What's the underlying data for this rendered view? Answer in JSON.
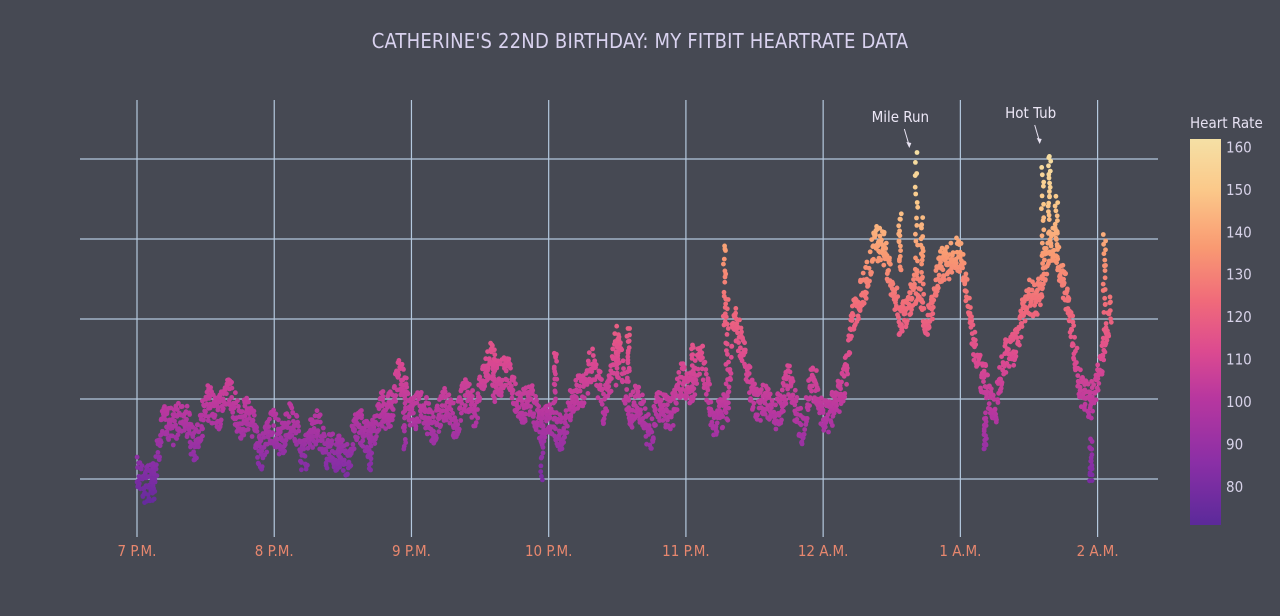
{
  "chart_data": {
    "type": "scatter",
    "title": "CATHERINE'S 22ND BIRTHDAY: MY FITBIT HEARTRATE DATA",
    "xlabel": "",
    "ylabel": "",
    "x_unit": "hours since 7 P.M.",
    "xlim": [
      -0.15,
      7.45
    ],
    "ylim": [
      72,
      166
    ],
    "x_tick_values": [
      0,
      1,
      2,
      3,
      4,
      5,
      6,
      7
    ],
    "x_tick_labels": [
      "7 P.M.",
      "8 P.M.",
      "9 P.M.",
      "10 P.M.",
      "11 P.M.",
      "12 A.M.",
      "1 A.M.",
      "2 A.M."
    ],
    "y_gridlines": [
      80,
      100,
      120,
      140,
      160
    ],
    "colorbar": {
      "title": "Heart Rate",
      "range": [
        71,
        162
      ],
      "ticks": [
        80,
        90,
        100,
        110,
        120,
        130,
        140,
        150,
        160
      ],
      "colors": [
        "#5b2a9a",
        "#8a2fa6",
        "#b8379f",
        "#dc4a90",
        "#f06a7a",
        "#f99a72",
        "#fbc98a",
        "#f5e0a5"
      ]
    },
    "annotations": [
      {
        "text": "Mile Run",
        "x": 5.65,
        "y": 160
      },
      {
        "text": "Hot Tub",
        "x": 6.6,
        "y": 161
      }
    ],
    "series_keypoints": [
      [
        0.0,
        81
      ],
      [
        0.05,
        76
      ],
      [
        0.1,
        81
      ],
      [
        0.2,
        92
      ],
      [
        0.3,
        97
      ],
      [
        0.4,
        90
      ],
      [
        0.5,
        96
      ],
      [
        0.65,
        101
      ],
      [
        0.8,
        95
      ],
      [
        0.9,
        89
      ],
      [
        1.0,
        91
      ],
      [
        1.1,
        94
      ],
      [
        1.2,
        88
      ],
      [
        1.35,
        92
      ],
      [
        1.45,
        84
      ],
      [
        1.6,
        91
      ],
      [
        1.75,
        93
      ],
      [
        1.9,
        104
      ],
      [
        2.0,
        99
      ],
      [
        2.1,
        95
      ],
      [
        2.25,
        96
      ],
      [
        2.45,
        99
      ],
      [
        2.6,
        110
      ],
      [
        2.75,
        101
      ],
      [
        2.95,
        95
      ],
      [
        3.05,
        92
      ],
      [
        3.15,
        96
      ],
      [
        3.3,
        108
      ],
      [
        3.4,
        100
      ],
      [
        3.5,
        112
      ],
      [
        3.6,
        98
      ],
      [
        3.75,
        94
      ],
      [
        3.95,
        101
      ],
      [
        4.1,
        109
      ],
      [
        4.2,
        97
      ],
      [
        4.3,
        94
      ],
      [
        4.35,
        124
      ],
      [
        4.45,
        104
      ],
      [
        4.6,
        97
      ],
      [
        4.75,
        102
      ],
      [
        4.85,
        95
      ],
      [
        4.95,
        104
      ],
      [
        5.05,
        93
      ],
      [
        5.15,
        106
      ],
      [
        5.3,
        131
      ],
      [
        5.45,
        140
      ],
      [
        5.55,
        118
      ],
      [
        5.65,
        128
      ],
      [
        5.75,
        121
      ],
      [
        5.85,
        130
      ],
      [
        5.95,
        139
      ],
      [
        6.05,
        127
      ],
      [
        6.15,
        104
      ],
      [
        6.25,
        99
      ],
      [
        6.35,
        111
      ],
      [
        6.5,
        124
      ],
      [
        6.6,
        130
      ],
      [
        6.7,
        141
      ],
      [
        6.8,
        118
      ],
      [
        6.88,
        105
      ],
      [
        6.95,
        96
      ],
      [
        7.05,
        115
      ],
      [
        7.1,
        120
      ]
    ],
    "spikes": [
      {
        "x": 0.12,
        "peak": 84,
        "low": 75
      },
      {
        "x": 1.47,
        "peak": 90,
        "low": 83
      },
      {
        "x": 1.7,
        "peak": 94,
        "low": 82
      },
      {
        "x": 4.28,
        "peak": 139,
        "low": 118
      },
      {
        "x": 4.3,
        "peak": 125,
        "low": 104
      },
      {
        "x": 4.05,
        "peak": 114,
        "low": 100
      },
      {
        "x": 3.58,
        "peak": 118,
        "low": 105
      },
      {
        "x": 3.5,
        "peak": 115,
        "low": 104
      },
      {
        "x": 3.05,
        "peak": 112,
        "low": 100
      },
      {
        "x": 2.95,
        "peak": 98,
        "low": 80
      },
      {
        "x": 2.6,
        "peak": 111,
        "low": 100
      },
      {
        "x": 1.95,
        "peak": 102,
        "low": 88
      },
      {
        "x": 5.56,
        "peak": 146,
        "low": 132
      },
      {
        "x": 5.68,
        "peak": 161,
        "low": 130
      },
      {
        "x": 5.72,
        "peak": 145,
        "low": 129
      },
      {
        "x": 6.18,
        "peak": 96,
        "low": 87
      },
      {
        "x": 6.6,
        "peak": 158,
        "low": 130
      },
      {
        "x": 6.65,
        "peak": 161,
        "low": 145
      },
      {
        "x": 6.7,
        "peak": 150,
        "low": 133
      },
      {
        "x": 6.95,
        "peak": 90,
        "low": 79
      },
      {
        "x": 7.05,
        "peak": 141,
        "low": 122
      }
    ]
  }
}
